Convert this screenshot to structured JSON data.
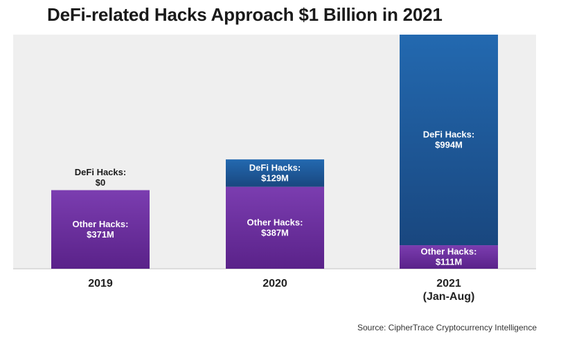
{
  "chart_data": {
    "type": "bar",
    "stacked": true,
    "title": "DeFi-related Hacks Approach $1 Billion in 2021",
    "source": "Source: CipherTrace Cryptocurrency Intelligence",
    "categories": [
      [
        "2019"
      ],
      [
        "2020"
      ],
      [
        "2021",
        "(Jan-Aug)"
      ]
    ],
    "unit": "$M",
    "series": [
      {
        "name": "Other Hacks",
        "color": "#6a2c9c",
        "values": [
          371,
          387,
          111
        ],
        "labels": [
          [
            "Other Hacks:",
            "$371M"
          ],
          [
            "Other Hacks:",
            "$387M"
          ],
          [
            "Other Hacks:",
            "$111M"
          ]
        ]
      },
      {
        "name": "DeFi Hacks",
        "color": "#1f5e9f",
        "values": [
          0,
          129,
          994
        ],
        "labels": [
          [
            "DeFi Hacks:",
            "$0"
          ],
          [
            "DeFi Hacks:",
            "$129M"
          ],
          [
            "DeFi Hacks:",
            "$994M"
          ]
        ]
      }
    ],
    "ylim": [
      0,
      1105
    ],
    "grid": false,
    "legend": "none"
  }
}
